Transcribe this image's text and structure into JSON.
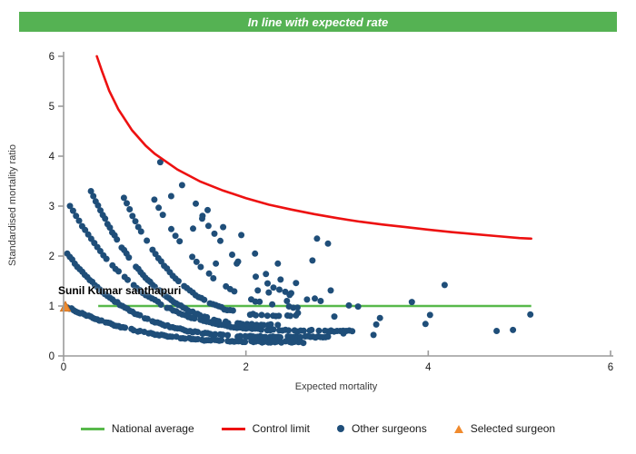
{
  "banner": {
    "title": "In line with expected rate",
    "bg": "#55b253",
    "fg": "#ffffff"
  },
  "chart_data": {
    "type": "scatter",
    "subtype": "funnel-plot",
    "title": "In line with expected rate",
    "xlabel": "Expected mortality",
    "ylabel": "Standardised mortality ratio",
    "xlim": [
      0,
      6
    ],
    "ylim": [
      0,
      6
    ],
    "x_ticks": [
      0,
      2,
      4,
      6
    ],
    "y_ticks": [
      0,
      1,
      2,
      3,
      4,
      5,
      6
    ],
    "grid": false,
    "axis_color": "#9b9b9b",
    "tick_label_color": "#1a1a1a",
    "national_average": {
      "y": 1.0,
      "x_start": 0.38,
      "x_end": 5.13,
      "color": "#58b94b"
    },
    "control_limit": {
      "color": "#ed1111",
      "formula": "y = 1 + 3.05/sqrt(x)",
      "points": [
        [
          0.365,
          6.0
        ],
        [
          0.42,
          5.71
        ],
        [
          0.5,
          5.31
        ],
        [
          0.6,
          4.94
        ],
        [
          0.75,
          4.52
        ],
        [
          0.9,
          4.21
        ],
        [
          1.0,
          4.05
        ],
        [
          1.25,
          3.73
        ],
        [
          1.5,
          3.49
        ],
        [
          1.75,
          3.31
        ],
        [
          2.0,
          3.16
        ],
        [
          2.25,
          3.03
        ],
        [
          2.5,
          2.93
        ],
        [
          2.75,
          2.84
        ],
        [
          3.0,
          2.76
        ],
        [
          3.25,
          2.69
        ],
        [
          3.5,
          2.63
        ],
        [
          3.75,
          2.58
        ],
        [
          4.0,
          2.53
        ],
        [
          4.25,
          2.48
        ],
        [
          4.5,
          2.44
        ],
        [
          4.75,
          2.4
        ],
        [
          5.0,
          2.36
        ],
        [
          5.13,
          2.35
        ]
      ]
    },
    "selected_surgeon": {
      "label": "Sunil Kumar santhapuri",
      "x": 0.02,
      "y": 0.98,
      "color": "#f08a2d"
    },
    "other_surgeons": {
      "color": "#1f4e79",
      "dot_radius": 3.5,
      "bands": [
        {
          "x0": 0.04,
          "y0": 0.98,
          "x1": 2.6,
          "y1": 0.28,
          "p": 3.2,
          "n": 110,
          "gap": 0.2
        },
        {
          "x0": 0.04,
          "y0": 2.05,
          "x1": 2.9,
          "y1": 0.38,
          "p": 4.2,
          "n": 105,
          "gap": 0.2
        },
        {
          "x0": 0.07,
          "y0": 3.0,
          "x1": 3.2,
          "y1": 0.5,
          "p": 4.0,
          "n": 95,
          "gap": 0.24
        },
        {
          "x0": 0.3,
          "y0": 3.3,
          "x1": 2.35,
          "y1": 0.62,
          "p": 3.0,
          "n": 80,
          "gap": 0.3
        },
        {
          "x0": 0.63,
          "y0": 3.3,
          "x1": 2.55,
          "y1": 0.8,
          "p": 3.2,
          "n": 62,
          "gap": 0.34
        },
        {
          "x0": 0.95,
          "y0": 3.28,
          "x1": 2.75,
          "y1": 0.97,
          "p": 2.8,
          "n": 40,
          "gap": 0.5
        },
        {
          "x0": 1.33,
          "y0": 3.42,
          "x1": 2.95,
          "y1": 1.15,
          "p": 2.5,
          "n": 26,
          "gap": 0.55
        }
      ],
      "points": [
        [
          1.06,
          3.88
        ],
        [
          1.3,
          3.42
        ],
        [
          1.18,
          3.2
        ],
        [
          1.45,
          3.05
        ],
        [
          1.58,
          2.92
        ],
        [
          1.52,
          2.75
        ],
        [
          1.75,
          2.58
        ],
        [
          1.42,
          2.55
        ],
        [
          1.95,
          2.42
        ],
        [
          2.78,
          2.35
        ],
        [
          2.9,
          2.25
        ],
        [
          2.1,
          2.05
        ],
        [
          2.73,
          1.91
        ],
        [
          2.35,
          1.85
        ],
        [
          1.9,
          1.85
        ],
        [
          1.67,
          1.85
        ],
        [
          2.22,
          1.64
        ],
        [
          2.38,
          1.53
        ],
        [
          2.55,
          1.46
        ],
        [
          2.13,
          1.31
        ],
        [
          2.25,
          1.27
        ],
        [
          2.48,
          1.22
        ],
        [
          2.93,
          1.31
        ],
        [
          2.67,
          1.13
        ],
        [
          2.82,
          1.1
        ],
        [
          2.45,
          1.1
        ],
        [
          3.13,
          1.01
        ],
        [
          3.23,
          0.99
        ],
        [
          3.82,
          1.08
        ],
        [
          4.18,
          1.42
        ],
        [
          2.57,
          0.86
        ],
        [
          2.97,
          0.79
        ],
        [
          3.47,
          0.76
        ],
        [
          4.02,
          0.82
        ],
        [
          3.97,
          0.64
        ],
        [
          3.43,
          0.63
        ],
        [
          2.72,
          0.52
        ],
        [
          2.92,
          0.49
        ],
        [
          3.07,
          0.45
        ],
        [
          3.4,
          0.42
        ],
        [
          4.93,
          0.52
        ],
        [
          4.75,
          0.5
        ],
        [
          5.12,
          0.83
        ],
        [
          2.3,
          0.3
        ],
        [
          2.5,
          0.27
        ],
        [
          2.63,
          0.26
        ]
      ]
    }
  },
  "axis_titles": {
    "y": "Standardised mortality ratio",
    "x": "Expected mortality"
  },
  "legend": {
    "items": [
      {
        "label": "National average",
        "swatch": "line",
        "color": "#58b94b"
      },
      {
        "label": "Control limit",
        "swatch": "line",
        "color": "#ed1111"
      },
      {
        "label": "Other surgeons",
        "swatch": "dot",
        "color": "#1f4e79"
      },
      {
        "label": "Selected surgeon",
        "swatch": "triangle",
        "color": "#f08a2d"
      }
    ]
  }
}
